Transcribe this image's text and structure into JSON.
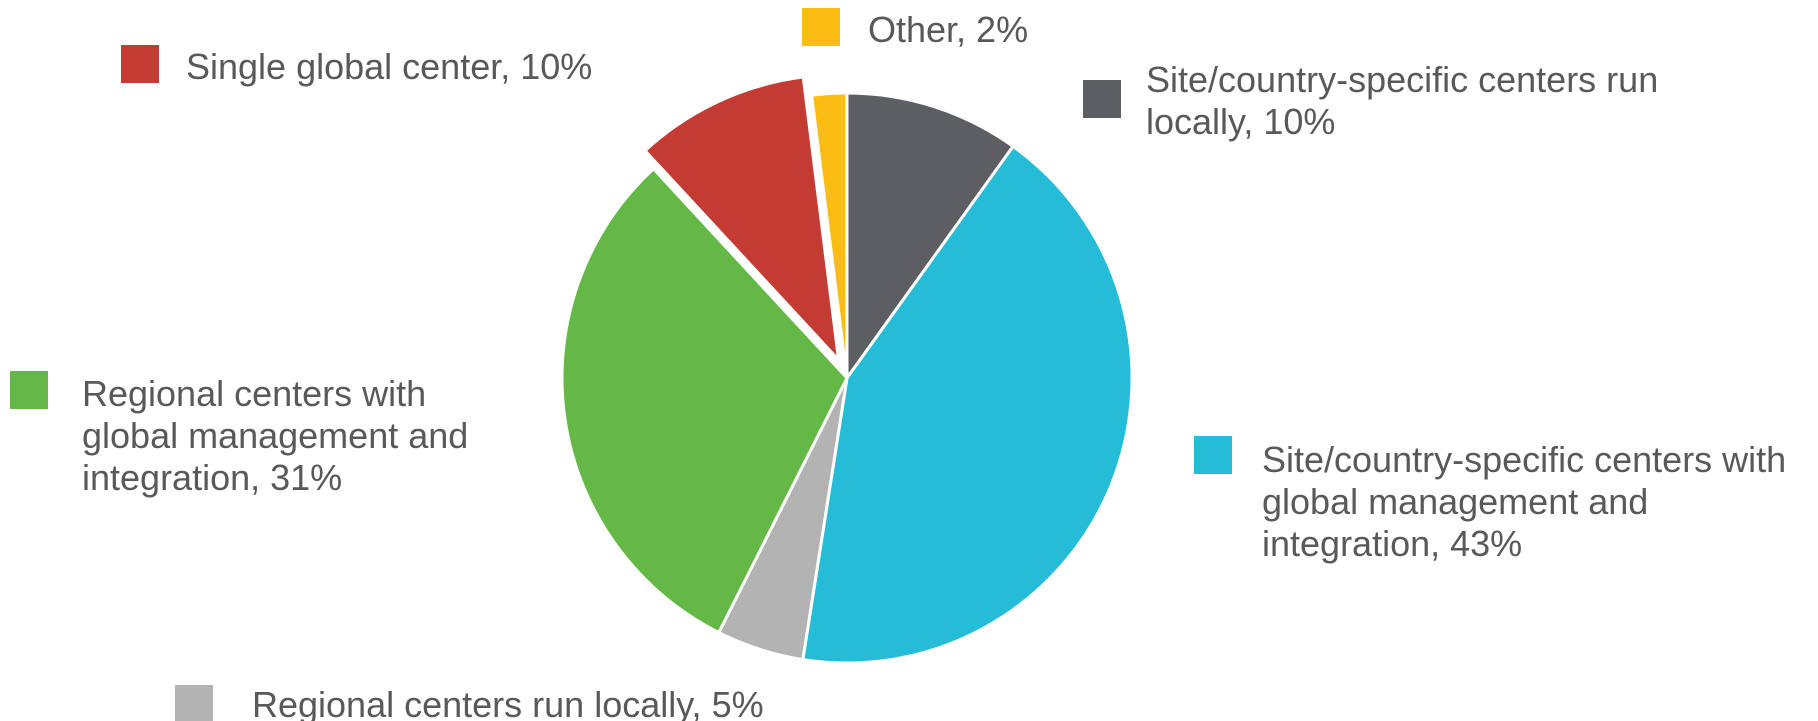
{
  "chart_data": {
    "type": "pie",
    "start_angle": "12 o'clock",
    "direction": "clockwise",
    "exploded": [
      "Single global center"
    ],
    "slices": [
      {
        "name": "Site/country-specific centers run locally",
        "value": 10,
        "color": "#5d5e62",
        "label_lines": [
          "Site/country-specific centers run",
          "locally, 10%"
        ]
      },
      {
        "name": "Site/country-specific centers with global management and integration",
        "value": 43,
        "color": "#24bcd6",
        "label_lines": [
          "Site/country-specific centers with",
          "global management and",
          "integration, 43%"
        ]
      },
      {
        "name": "Regional centers run locally",
        "value": 5,
        "color": "#b3b3b3",
        "label_lines": [
          "Regional centers run locally, 5%"
        ]
      },
      {
        "name": "Regional centers with global management and integration",
        "value": 31,
        "color": "#64b946",
        "label_lines": [
          "Regional centers with",
          "global management and",
          "integration, 31%"
        ]
      },
      {
        "name": "Single global center",
        "value": 10,
        "color": "#c33b33",
        "label_lines": [
          "Single global center, 10%"
        ]
      },
      {
        "name": "Other",
        "value": 2,
        "color": "#fbbc13",
        "label_lines": [
          "Other, 2%"
        ]
      }
    ]
  }
}
